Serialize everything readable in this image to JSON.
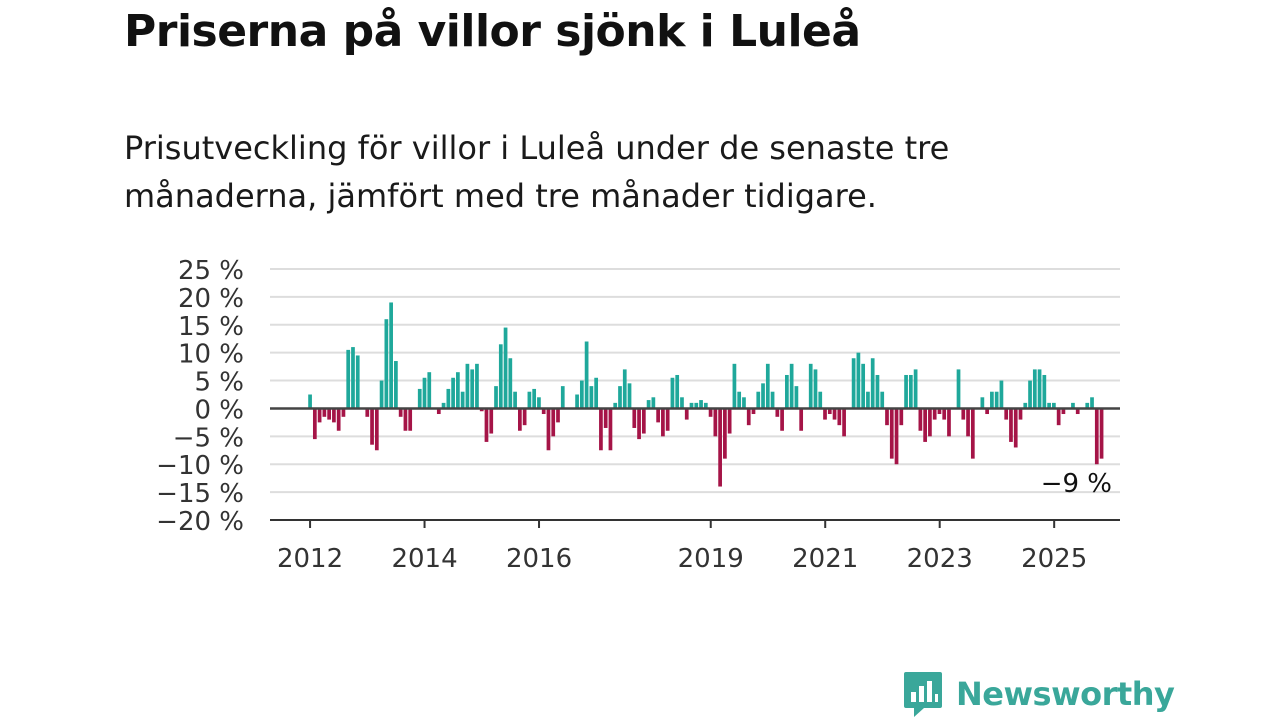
{
  "title": "Priserna på villor sjönk i Luleå",
  "subtitle": "Prisutveckling för villor i Luleå under de senaste tre månaderna, jämfört med tre månader tidigare.",
  "brand": {
    "name": "Newsworthy",
    "icon": "newsworthy-logo-icon"
  },
  "colors": {
    "positive": "#1fa89b",
    "negative": "#a51447",
    "grid": "#dddddd",
    "axis": "#333333",
    "brand": "#3aa79a"
  },
  "chart_data": {
    "type": "bar",
    "ylim": [
      -20,
      25
    ],
    "y_ticks": [
      25,
      20,
      15,
      10,
      5,
      0,
      -5,
      -10,
      -15,
      -20
    ],
    "y_tick_labels": [
      "25 %",
      "20 %",
      "15 %",
      "10 %",
      "5 %",
      "0 %",
      "−5 %",
      "−10 %",
      "−15 %",
      "−20 %"
    ],
    "x_ticks": [
      {
        "label": "2012",
        "x": 2012.0
      },
      {
        "label": "2014",
        "x": 2014.0
      },
      {
        "label": "2016",
        "x": 2016.0
      },
      {
        "label": "2019",
        "x": 2019.0
      },
      {
        "label": "2021",
        "x": 2021.0
      },
      {
        "label": "2023",
        "x": 2023.0
      },
      {
        "label": "2025",
        "x": 2025.0
      }
    ],
    "x_start": 2012.0,
    "step": 0.0833,
    "values": [
      2.5,
      -5.5,
      -2.5,
      -1.5,
      -2,
      -2.5,
      -4,
      -1.5,
      10.5,
      11,
      9.5,
      0,
      -1.5,
      -6.5,
      -7.5,
      5,
      16,
      19,
      8.5,
      -1.5,
      -4,
      -4,
      0,
      3.5,
      5.5,
      6.5,
      0,
      -1,
      1,
      3.5,
      5.5,
      6.5,
      3,
      8,
      7,
      8,
      -0.5,
      -6,
      -4.5,
      4,
      11.5,
      14.5,
      9,
      3,
      -4,
      -3,
      3,
      3.5,
      2,
      -1,
      -7.5,
      -5,
      -2.5,
      4,
      0,
      0,
      2.5,
      5,
      12,
      4,
      5.5,
      -7.5,
      -3.5,
      -7.5,
      1,
      4,
      7,
      4.5,
      -3.5,
      -5.5,
      -4.5,
      1.5,
      2,
      -2.5,
      -5,
      -4,
      5.5,
      6,
      2,
      -2,
      1,
      1,
      1.5,
      1,
      -1.5,
      -5,
      -14,
      -9,
      -4.5,
      8,
      3,
      2,
      -3,
      -1,
      3,
      4.5,
      8,
      3,
      -1.5,
      -4,
      6,
      8,
      4,
      -4,
      0,
      8,
      7,
      3,
      -2,
      -1,
      -2,
      -3,
      -5,
      0,
      9,
      10,
      8,
      3,
      9,
      6,
      3,
      -3,
      -9,
      -10,
      -3,
      6,
      6,
      7,
      -4,
      -6,
      -5,
      -2,
      -1,
      -2,
      -5,
      0,
      7,
      -2,
      -5,
      -9,
      0,
      2,
      -1,
      3,
      3,
      5,
      -2,
      -6,
      -7,
      -2,
      1,
      5,
      7,
      7,
      6,
      1,
      1,
      -3,
      -1,
      0,
      1,
      -1,
      0,
      1,
      2,
      -10,
      -9
    ],
    "last_label": "−9 %"
  }
}
